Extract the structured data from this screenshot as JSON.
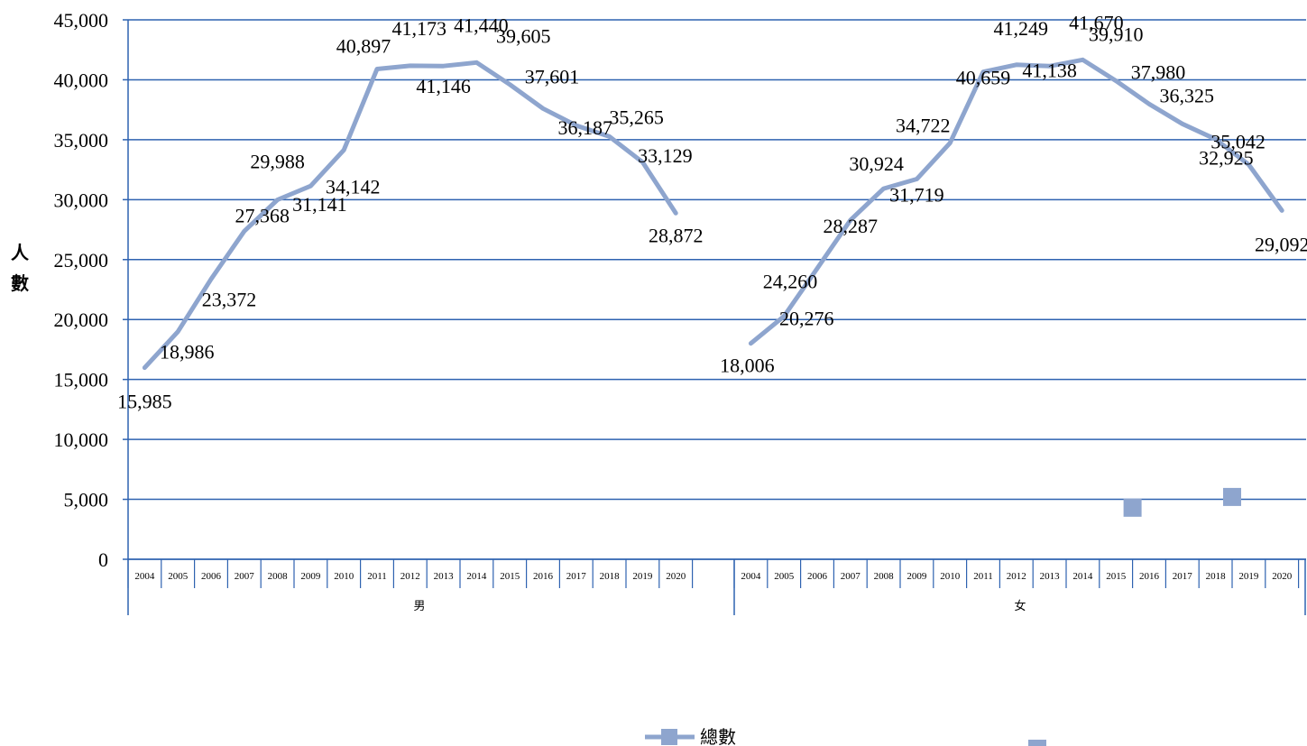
{
  "chart_data": {
    "type": "line",
    "ylabel": "人數",
    "ylim": [
      0,
      45000
    ],
    "y_ticks": [
      "0",
      "5,000",
      "10,000",
      "15,000",
      "20,000",
      "25,000",
      "30,000",
      "35,000",
      "40,000",
      "45,000"
    ],
    "grid": "horizontal",
    "groups": [
      {
        "name": "男",
        "years": [
          "2004",
          "2005",
          "2006",
          "2007",
          "2008",
          "2009",
          "2010",
          "2011",
          "2012",
          "2013",
          "2014",
          "2015",
          "2016",
          "2017",
          "2018",
          "2019",
          "2020"
        ],
        "values": [
          15985,
          18986,
          23372,
          27368,
          29988,
          31141,
          34142,
          40897,
          41173,
          41146,
          41440,
          39605,
          37601,
          36187,
          35265,
          33129,
          28872
        ],
        "labels": [
          "15,985",
          "18,986",
          "23,372",
          "27,368",
          "29,988",
          "31,141",
          "34,142",
          "40,897",
          "41,173",
          "41,146",
          "41,440",
          "39,605",
          "37,601",
          "36,187",
          "35,265",
          "33,129",
          "28,872"
        ]
      },
      {
        "name": "女",
        "years": [
          "2004",
          "2005",
          "2006",
          "2007",
          "2008",
          "2009",
          "2010",
          "2011",
          "2012",
          "2013",
          "2014",
          "2015",
          "2016",
          "2017",
          "2018",
          "2019",
          "2020"
        ],
        "values": [
          18006,
          20276,
          24260,
          28287,
          30924,
          31719,
          34722,
          40659,
          41249,
          41138,
          41670,
          39910,
          37980,
          36325,
          35042,
          32925,
          29092
        ],
        "labels": [
          "18,006",
          "20,276",
          "24,260",
          "28,287",
          "30,924",
          "31,719",
          "34,722",
          "40,659",
          "41,249",
          "41,138",
          "41,670",
          "39,910",
          "37,980",
          "36,325",
          "35,042",
          "32,925",
          "29,092"
        ]
      }
    ],
    "series": [
      {
        "name": "總數",
        "color": "#8EA5CE",
        "marker": "square"
      }
    ],
    "extra_markers": [
      {
        "group": "女",
        "position_between": [
          "2015",
          "2016"
        ],
        "value": 4300
      },
      {
        "group": "女",
        "position_between": [
          "2018",
          "2019"
        ],
        "value": 5200
      }
    ],
    "colors": {
      "line": "#8EA5CE",
      "grid": "#2E62B0",
      "axis": "#2E62B0"
    },
    "legend": "bottom-center"
  }
}
